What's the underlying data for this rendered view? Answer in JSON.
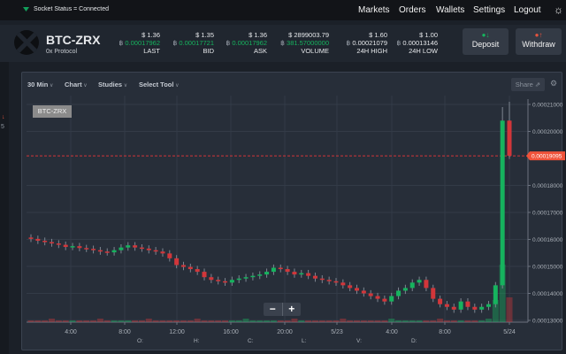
{
  "topbar": {
    "socket_status": "Socket Status = Connected",
    "nav": [
      "Markets",
      "Orders",
      "Wallets",
      "Settings",
      "Logout"
    ]
  },
  "header": {
    "pair": "BTC-ZRX",
    "name": "0x Protocol",
    "currency_symbol": "฿",
    "stats": [
      {
        "usd": "$ 1.36",
        "btc": "0.00017962",
        "label": "LAST",
        "green": true
      },
      {
        "usd": "$ 1.35",
        "btc": "0.00017721",
        "label": "BID",
        "green": true
      },
      {
        "usd": "$ 1.36",
        "btc": "0.00017962",
        "label": "ASK",
        "green": true
      },
      {
        "usd": "$ 2899003.79",
        "btc": "381.57000000",
        "label": "VOLUME",
        "green": true
      },
      {
        "usd": "$ 1.60",
        "btc": "0.00021079",
        "label": "24H HIGH",
        "green": false
      },
      {
        "usd": "$ 1.00",
        "btc": "0.00013146",
        "label": "24H LOW",
        "green": false
      }
    ],
    "deposit": "Deposit",
    "withdraw": "Withdraw"
  },
  "left": {
    "arrow": "↓",
    "value": "5"
  },
  "toolbar": {
    "interval": "30 Min",
    "chart": "Chart",
    "studies": "Studies",
    "select_tool": "Select Tool",
    "share": "Share"
  },
  "zoom": {
    "minus": "−",
    "plus": "+"
  },
  "ohlc_labels": [
    "O:",
    "H:",
    "C:",
    "L:",
    "V:",
    "D:"
  ],
  "colors": {
    "up": "#16b35e",
    "down": "#d2363a",
    "price_tag": "#f0533a",
    "background": "#272e39"
  },
  "chart_data": {
    "type": "candlestick",
    "symbol_label": "BTC-ZRX",
    "ylim": [
      0.00013,
      0.000212
    ],
    "y_ticks": [
      "0.00021000",
      "0.00020000",
      "0.00018000",
      "0.00017000",
      "0.00016000",
      "0.00015000",
      "0.00014000",
      "0.00013000"
    ],
    "x_ticks": [
      "4:00",
      "8:00",
      "12:00",
      "16:00",
      "20:00",
      "5/23",
      "4:00",
      "8:00",
      "5/24"
    ],
    "current_price": "0.00019095",
    "close": [
      0.0001602,
      0.0001595,
      0.000159,
      0.0001585,
      0.000158,
      0.0001572,
      0.0001575,
      0.0001568,
      0.0001565,
      0.000156,
      0.0001555,
      0.0001552,
      0.000156,
      0.000157,
      0.0001578,
      0.000157,
      0.0001566,
      0.000156,
      0.0001555,
      0.0001548,
      0.000153,
      0.0001505,
      0.0001498,
      0.000149,
      0.000148,
      0.000146,
      0.000145,
      0.0001445,
      0.000144,
      0.000145,
      0.0001455,
      0.000146,
      0.0001465,
      0.000147,
      0.000148,
      0.0001495,
      0.000149,
      0.000148,
      0.000147,
      0.0001475,
      0.0001465,
      0.0001455,
      0.000145,
      0.0001445,
      0.000144,
      0.000143,
      0.000142,
      0.000141,
      0.00014,
      0.000139,
      0.000138,
      0.000137,
      0.000139,
      0.000141,
      0.000142,
      0.000144,
      0.000145,
      0.000142,
      0.000138,
      0.000136,
      0.000135,
      0.000134,
      0.000137,
      0.000135,
      0.000134,
      0.000135,
      0.000136,
      0.000143,
      0.000204,
      0.000191
    ],
    "high_last_two": [
      0.000209,
      0.000211
    ]
  }
}
